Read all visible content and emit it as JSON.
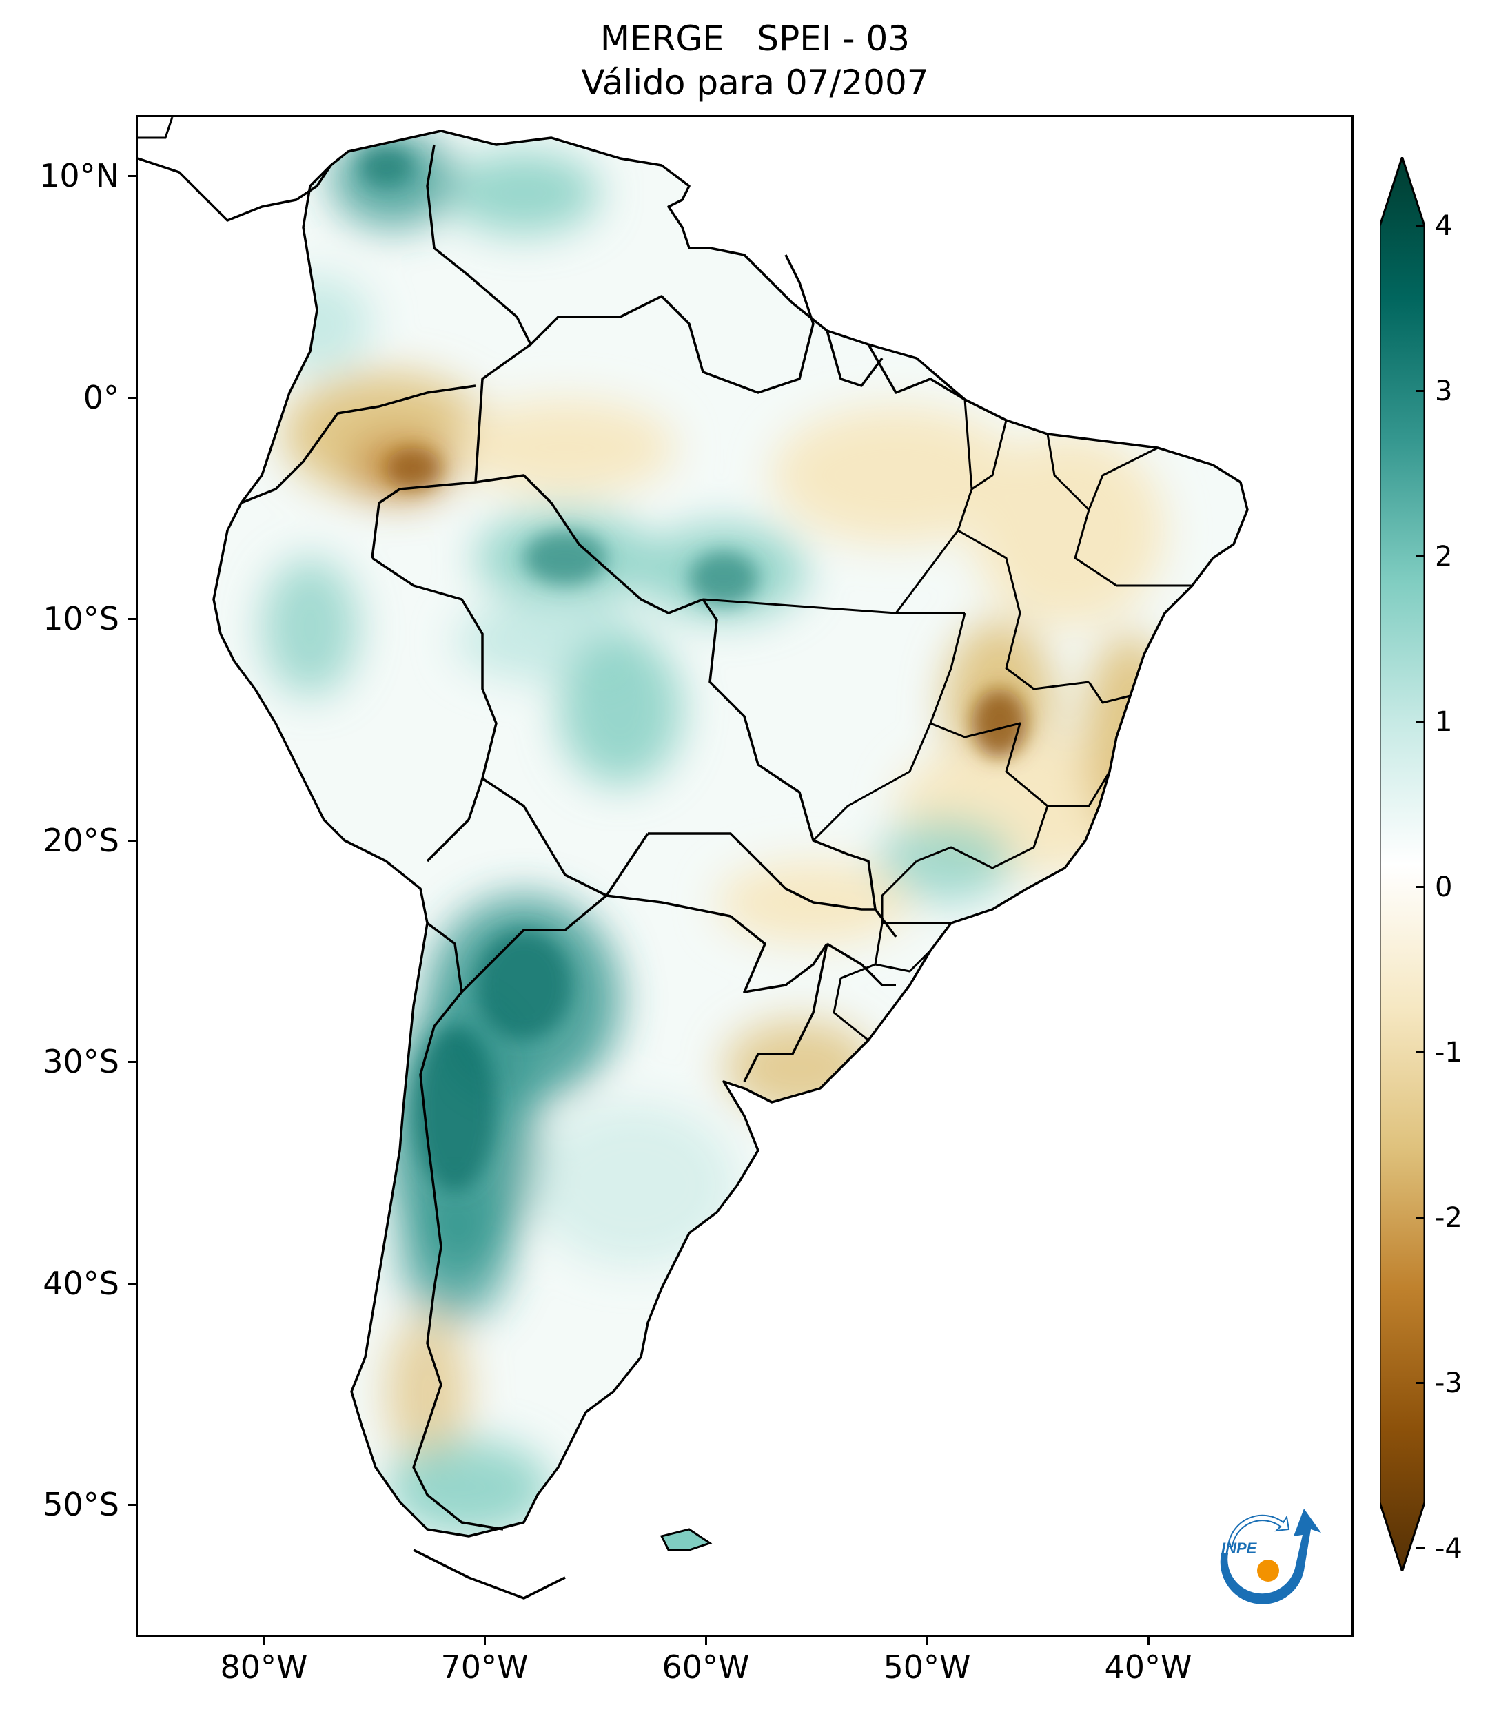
{
  "title": {
    "line1": "MERGE   SPEI - 03",
    "line2": "Válido para 07/2007"
  },
  "axes": {
    "lat_labels": [
      {
        "label": "10°N",
        "lat": 10
      },
      {
        "label": "0°",
        "lat": 0
      },
      {
        "label": "10°S",
        "lat": -10
      },
      {
        "label": "20°S",
        "lat": -20
      },
      {
        "label": "30°S",
        "lat": -30
      },
      {
        "label": "40°S",
        "lat": -40
      },
      {
        "label": "50°S",
        "lat": -50
      }
    ],
    "lon_labels": [
      {
        "label": "80°W",
        "lon": -80
      },
      {
        "label": "70°W",
        "lon": -70
      },
      {
        "label": "60°W",
        "lon": -60
      },
      {
        "label": "50°W",
        "lon": -50
      },
      {
        "label": "40°W",
        "lon": -40
      }
    ],
    "lon_range": [
      -85,
      -30
    ],
    "lat_range": [
      -56,
      13
    ]
  },
  "colorbar": {
    "labels": [
      "4",
      "3",
      "2",
      "1",
      "0",
      "-1",
      "-2",
      "-3",
      "-4"
    ],
    "range": [
      -4,
      4
    ],
    "extend": "both",
    "colormap": "BrBG",
    "colors": [
      "#543005",
      "#8c510a",
      "#bf812d",
      "#dfc27d",
      "#f6e8c3",
      "#ffffff",
      "#c7eae5",
      "#80cdc1",
      "#35978f",
      "#01665e",
      "#003c30"
    ]
  },
  "logo": {
    "text": "INPE",
    "color_blue": "#1a6fb5",
    "color_orange": "#f39200"
  }
}
